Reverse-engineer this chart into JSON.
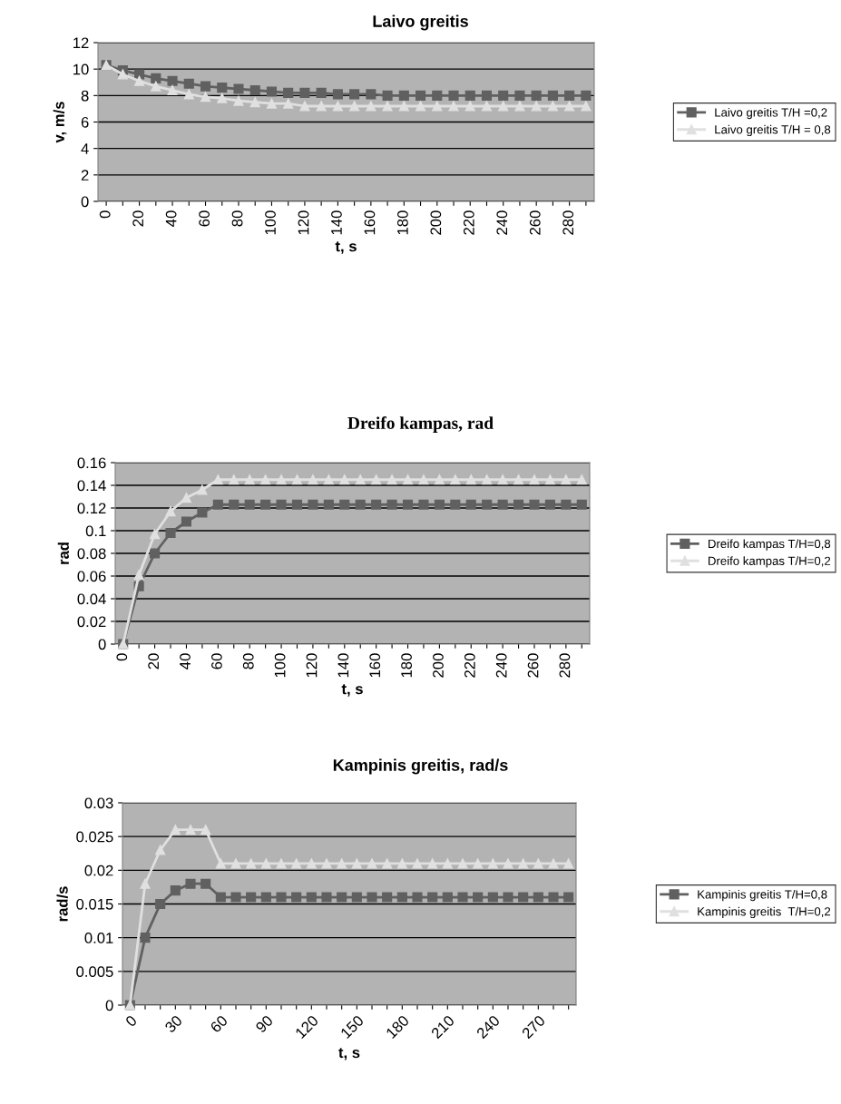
{
  "chart_data": [
    {
      "type": "line",
      "title": "Laivo greitis",
      "xlabel": "t, s",
      "ylabel": "v, m/s",
      "categories": [
        "0",
        null,
        "20",
        null,
        "40",
        null,
        "60",
        null,
        "80",
        null,
        "100",
        null,
        "120",
        null,
        "140",
        null,
        "160",
        null,
        "180",
        null,
        "200",
        null,
        "220",
        null,
        "240",
        null,
        "260",
        null,
        "280",
        null
      ],
      "ylim": [
        0,
        12
      ],
      "yticks": [
        0,
        2,
        4,
        6,
        8,
        10,
        12
      ],
      "grid": "y",
      "legend": "right",
      "line_style": "solid",
      "series": [
        {
          "name": "Laivo greitis T/H =0,2",
          "color": "#606060",
          "marker": "square",
          "values": [
            10.3,
            9.9,
            9.6,
            9.3,
            9.1,
            8.9,
            8.7,
            8.6,
            8.5,
            8.4,
            8.3,
            8.2,
            8.2,
            8.2,
            8.1,
            8.1,
            8.1,
            8.0,
            8.0,
            8.0,
            8.0,
            8.0,
            8.0,
            8.0,
            8.0,
            8.0,
            8.0,
            8.0,
            8.0,
            8.0
          ]
        },
        {
          "name": "Laivo greitis T/H = 0,8",
          "color": "#e0e0e0",
          "marker": "triangle",
          "values": [
            10.3,
            9.6,
            9.1,
            8.7,
            8.4,
            8.1,
            7.9,
            7.8,
            7.6,
            7.5,
            7.4,
            7.4,
            7.2,
            7.2,
            7.2,
            7.2,
            7.2,
            7.2,
            7.2,
            7.2,
            7.2,
            7.2,
            7.2,
            7.2,
            7.2,
            7.2,
            7.2,
            7.2,
            7.2,
            7.2
          ]
        }
      ]
    },
    {
      "type": "line",
      "title": "Dreifo kampas, rad",
      "xlabel": "t, s",
      "ylabel": "rad",
      "categories": [
        "0",
        null,
        "20",
        null,
        "40",
        null,
        "60",
        null,
        "80",
        null,
        "100",
        null,
        "120",
        null,
        "140",
        null,
        "160",
        null,
        "180",
        null,
        "200",
        null,
        "220",
        null,
        "240",
        null,
        "260",
        null,
        "280",
        null
      ],
      "ylim": [
        0,
        0.16
      ],
      "yticks": [
        0,
        {
          "value": 0.02,
          "label": "0.02"
        },
        {
          "value": 0.04,
          "label": "0.04"
        },
        {
          "value": 0.06,
          "label": "0.06"
        },
        {
          "value": 0.08,
          "label": "0.08"
        },
        {
          "value": 0.1,
          "label": "0.1"
        },
        {
          "value": 0.12,
          "label": "0.12"
        },
        {
          "value": 0.14,
          "label": "0.14"
        },
        {
          "value": 0.16,
          "label": "0.16"
        }
      ],
      "grid": "y",
      "legend": "right",
      "line_style": "solid",
      "series": [
        {
          "name": "Dreifo kampas T/H=0,8",
          "color": "#606060",
          "marker": "square",
          "values": [
            0,
            0.051,
            0.08,
            0.098,
            0.108,
            0.116,
            0.123,
            0.123,
            0.123,
            0.123,
            0.123,
            0.123,
            0.123,
            0.123,
            0.123,
            0.123,
            0.123,
            0.123,
            0.123,
            0.123,
            0.123,
            0.123,
            0.123,
            0.123,
            0.123,
            0.123,
            0.123,
            0.123,
            0.123,
            0.123
          ]
        },
        {
          "name": "Dreifo kampas T/H=0,2",
          "color": "#e0e0e0",
          "marker": "triangle",
          "values": [
            0,
            0.061,
            0.097,
            0.117,
            0.129,
            0.136,
            0.145,
            0.145,
            0.145,
            0.145,
            0.145,
            0.145,
            0.145,
            0.145,
            0.145,
            0.145,
            0.145,
            0.145,
            0.145,
            0.145,
            0.145,
            0.145,
            0.145,
            0.145,
            0.145,
            0.145,
            0.145,
            0.145,
            0.145,
            0.145
          ]
        }
      ]
    },
    {
      "type": "line",
      "title": "Kampinis greitis, rad/s",
      "xlabel": "t, s",
      "ylabel": "rad/s",
      "categories": [
        "0",
        null,
        null,
        "30",
        null,
        null,
        "60",
        null,
        null,
        "90",
        null,
        null,
        "120",
        null,
        null,
        "150",
        null,
        null,
        "180",
        null,
        null,
        "210",
        null,
        null,
        "240",
        null,
        null,
        "270",
        null,
        null
      ],
      "ylim": [
        0,
        0.03
      ],
      "yticks": [
        0,
        {
          "value": 0.005,
          "label": "0.005"
        },
        {
          "value": 0.01,
          "label": "0.01"
        },
        {
          "value": 0.015,
          "label": "0.015"
        },
        {
          "value": 0.02,
          "label": "0.02"
        },
        {
          "value": 0.025,
          "label": "0.025"
        },
        {
          "value": 0.03,
          "label": "0.03"
        }
      ],
      "grid": "y",
      "legend": "right",
      "line_style": "solid",
      "series": [
        {
          "name": "Kampinis greitis T/H=0,8",
          "color": "#606060",
          "marker": "square",
          "values": [
            0,
            0.01,
            0.015,
            0.017,
            0.018,
            0.018,
            0.016,
            0.016,
            0.016,
            0.016,
            0.016,
            0.016,
            0.016,
            0.016,
            0.016,
            0.016,
            0.016,
            0.016,
            0.016,
            0.016,
            0.016,
            0.016,
            0.016,
            0.016,
            0.016,
            0.016,
            0.016,
            0.016,
            0.016,
            0.016
          ]
        },
        {
          "name": "Kampinis greitis  T/H=0,2",
          "color": "#e0e0e0",
          "marker": "triangle",
          "values": [
            0,
            0.018,
            0.023,
            0.026,
            0.026,
            0.026,
            0.021,
            0.021,
            0.021,
            0.021,
            0.021,
            0.021,
            0.021,
            0.021,
            0.021,
            0.021,
            0.021,
            0.021,
            0.021,
            0.021,
            0.021,
            0.021,
            0.021,
            0.021,
            0.021,
            0.021,
            0.021,
            0.021,
            0.021,
            0.021
          ]
        }
      ]
    }
  ]
}
